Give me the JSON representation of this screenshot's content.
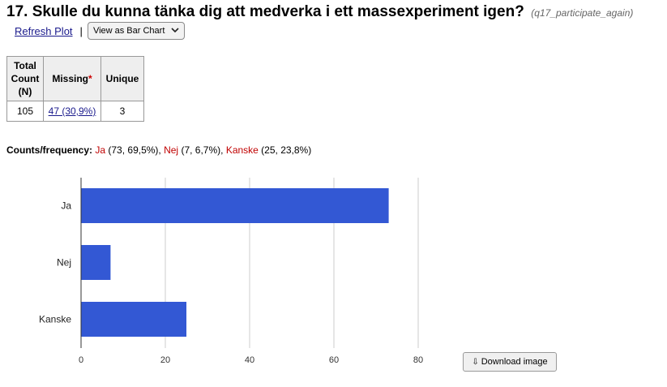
{
  "header": {
    "title": "17. Skulle du kunna tänka dig att medverka i ett massexperiment igen?",
    "variable": "(q17_participate_again)"
  },
  "toolbar": {
    "refresh_label": "Refresh Plot",
    "separator": "|",
    "view_select_label": "View as Bar Chart"
  },
  "stats": {
    "headers": {
      "total": "Total Count (N)",
      "missing": "Missing",
      "missing_marker": "*",
      "unique": "Unique"
    },
    "values": {
      "total": "105",
      "missing": "47 (30,9%)",
      "unique": "3"
    }
  },
  "frequency": {
    "label": "Counts/frequency:",
    "items": [
      {
        "name": "Ja",
        "detail": " (73, 69,5%)",
        "sep": ", "
      },
      {
        "name": "Nej",
        "detail": " (7, 6,7%)",
        "sep": ", "
      },
      {
        "name": "Kanske",
        "detail": " (25, 23,8%)",
        "sep": ""
      }
    ]
  },
  "download": {
    "label": "Download image",
    "icon": "download-arrow-icon"
  },
  "colors": {
    "bar": "#3358d4",
    "category_text": "#c00000",
    "link": "#1a1a8c"
  },
  "chart_data": {
    "type": "bar",
    "orientation": "horizontal",
    "categories": [
      "Ja",
      "Nej",
      "Kanske"
    ],
    "values": [
      73,
      7,
      25
    ],
    "xlim": [
      0,
      80
    ],
    "xticks": [
      0,
      20,
      40,
      60,
      80
    ],
    "grid": true,
    "title": "",
    "xlabel": "",
    "ylabel": ""
  }
}
